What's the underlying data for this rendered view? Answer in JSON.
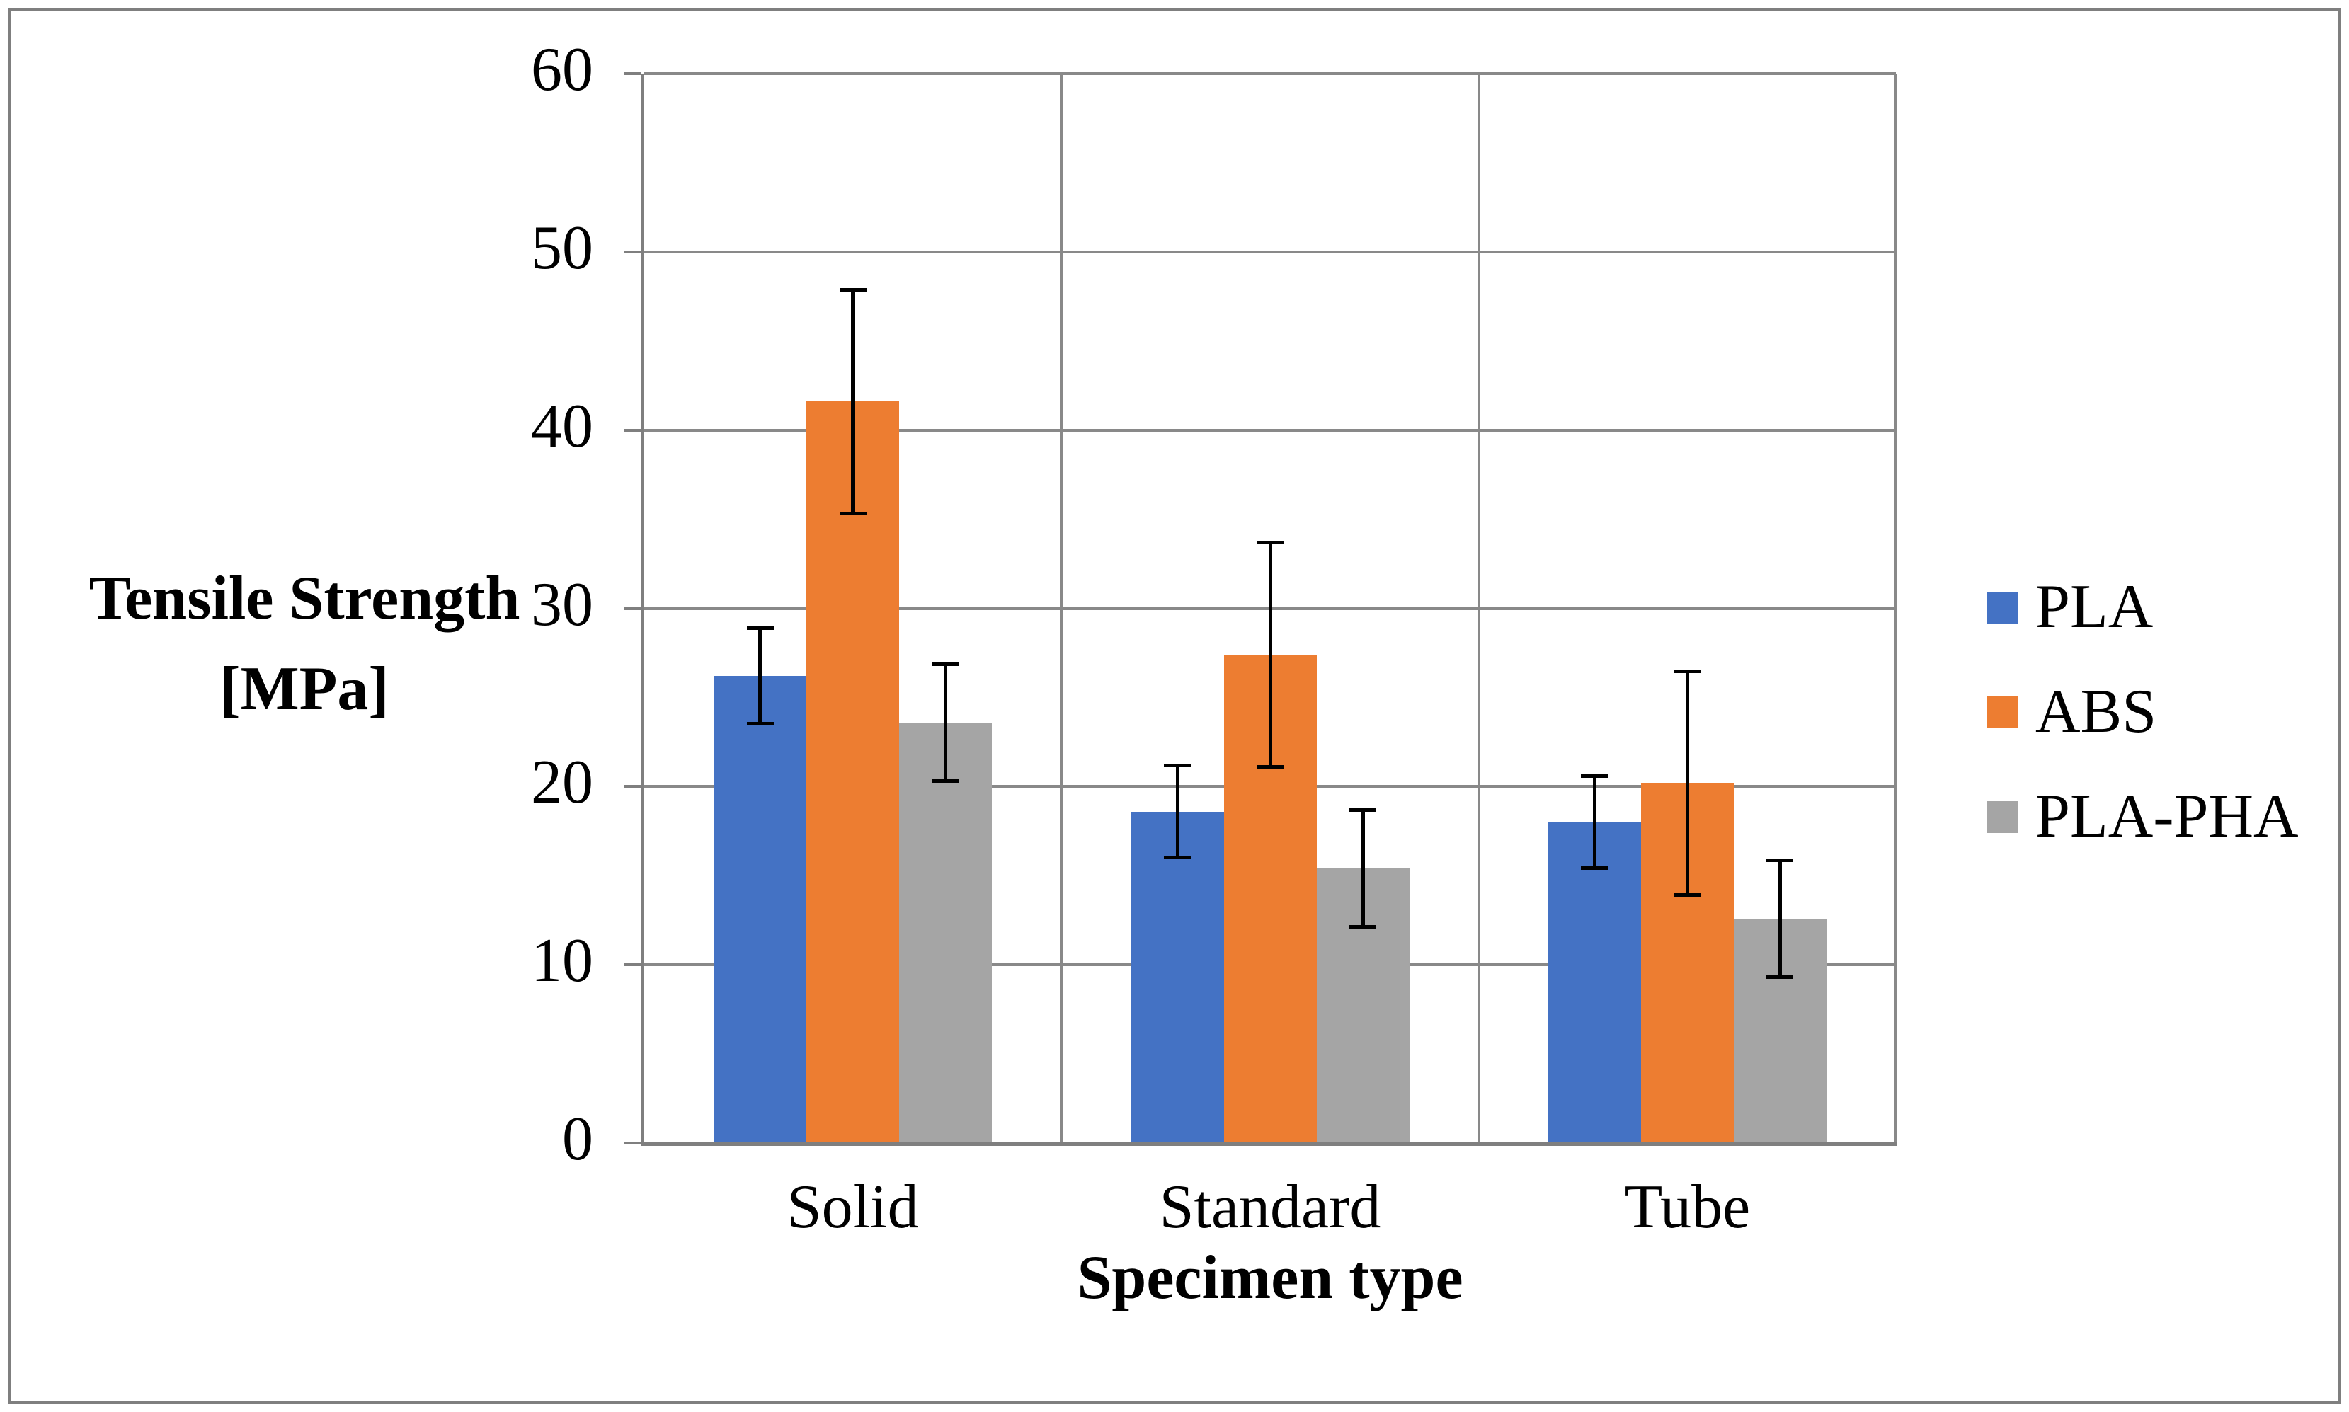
{
  "chart_data": {
    "type": "bar",
    "title": "",
    "categories": [
      "Solid",
      "Standard",
      "Tube"
    ],
    "series": [
      {
        "name": "PLA",
        "color": "#4472C4",
        "values": [
          26.2,
          18.6,
          18.0
        ],
        "error": [
          2.7,
          2.6,
          2.6
        ]
      },
      {
        "name": "ABS",
        "color": "#ED7D31",
        "values": [
          41.6,
          27.4,
          20.2
        ],
        "error": [
          6.3,
          6.3,
          6.3
        ]
      },
      {
        "name": "PLA-PHA",
        "color": "#A5A5A5",
        "values": [
          23.6,
          15.4,
          12.6
        ],
        "error": [
          3.3,
          3.3,
          3.3
        ]
      }
    ],
    "xlabel": "Specimen type",
    "ylabel": "Tensile Strength [MPa]",
    "ylabel_lines": [
      "Tensile Strength",
      "[MPa]"
    ],
    "ylim": [
      0,
      60
    ],
    "ytick_step": 10,
    "ytick_labels": [
      "0",
      "10",
      "20",
      "30",
      "40",
      "50",
      "60"
    ],
    "grid": true,
    "legend_position": "right",
    "error_bars": true
  },
  "colors": {
    "background": "#FFFFFF",
    "gridline": "#898989",
    "axis": "#7F7F7F",
    "border": "#7F7F7F",
    "error_bar": "#000000",
    "text": "#000000"
  }
}
